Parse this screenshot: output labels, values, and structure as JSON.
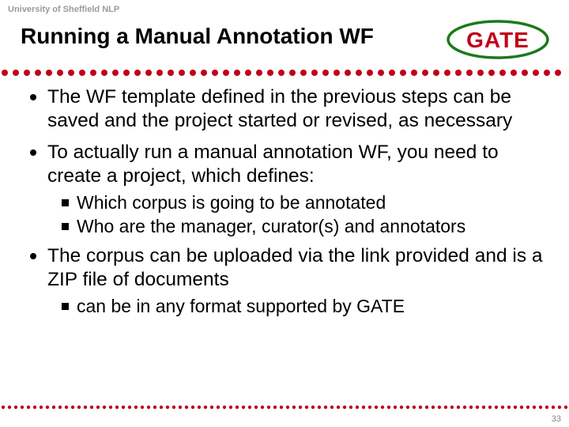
{
  "header": {
    "affiliation": "University of Sheffield NLP",
    "title": "Running a Manual Annotation WF",
    "logo": {
      "text": "GATE",
      "text_color": "#c00018",
      "oval_border_color": "#1a7a1a",
      "oval_border_width": 3
    }
  },
  "dots": {
    "top_color": "#c00018",
    "top_radius": 4,
    "top_spacing": 14,
    "bottom_color": "#c00018",
    "bottom_radius": 2.2,
    "bottom_spacing": 8
  },
  "bullets": [
    {
      "text": "The WF template defined in the previous steps can be saved and the project started or revised, as necessary",
      "subs": []
    },
    {
      "text": "To actually run a manual annotation WF, you need to create a project, which defines:",
      "subs": [
        "Which corpus is going to be annotated",
        "Who are the manager, curator(s) and annotators"
      ]
    },
    {
      "text": "The corpus can be uploaded via the link provided and is a ZIP file of documents",
      "subs": [
        "can be in any format supported by GATE"
      ]
    }
  ],
  "page_number": "33",
  "colors": {
    "title_color": "#000000",
    "body_color": "#000000",
    "header_gray": "#9a9a9a",
    "background": "#ffffff"
  },
  "fonts": {
    "title_size_pt": 21,
    "body_size_pt": 18,
    "sub_size_pt": 17,
    "header_size_pt": 8
  }
}
